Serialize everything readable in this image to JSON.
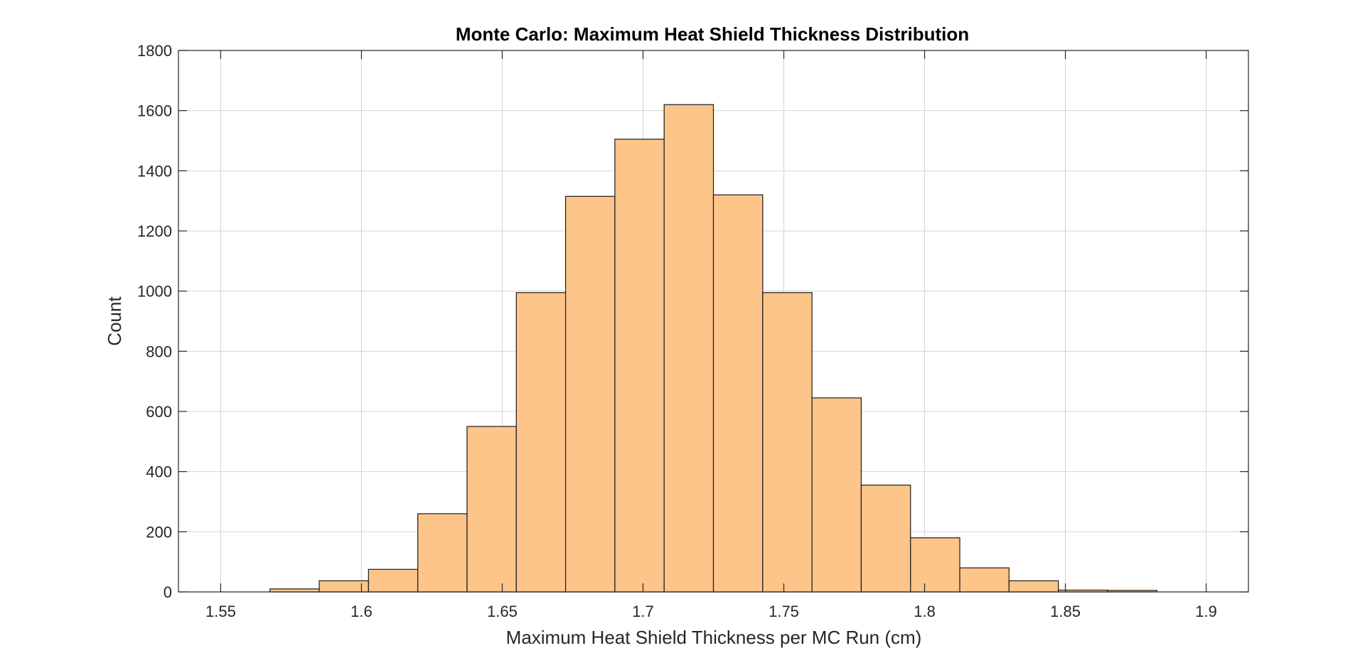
{
  "chart_data": {
    "type": "bar",
    "title": "Monte Carlo: Maximum Heat Shield Thickness Distribution",
    "xlabel": "Maximum Heat Shield Thickness per MC Run (cm)",
    "ylabel": "Count",
    "xlim": [
      1.535,
      1.915
    ],
    "ylim": [
      0,
      1800
    ],
    "xticks": [
      1.55,
      1.6,
      1.65,
      1.7,
      1.75,
      1.8,
      1.85,
      1.9
    ],
    "xtick_labels": [
      "1.55",
      "1.6",
      "1.65",
      "1.7",
      "1.75",
      "1.8",
      "1.85",
      "1.9"
    ],
    "yticks": [
      0,
      200,
      400,
      600,
      800,
      1000,
      1200,
      1400,
      1600,
      1800
    ],
    "ytick_labels": [
      "0",
      "200",
      "400",
      "600",
      "800",
      "1000",
      "1200",
      "1400",
      "1600",
      "1800"
    ],
    "grid": true,
    "bar_color": "#FDC58A",
    "bar_edge_color": "#1a1a1a",
    "bins": [
      {
        "x0": 1.5675,
        "x1": 1.585,
        "count": 10
      },
      {
        "x0": 1.585,
        "x1": 1.6025,
        "count": 37
      },
      {
        "x0": 1.6025,
        "x1": 1.62,
        "count": 75
      },
      {
        "x0": 1.62,
        "x1": 1.6375,
        "count": 260
      },
      {
        "x0": 1.6375,
        "x1": 1.655,
        "count": 550
      },
      {
        "x0": 1.655,
        "x1": 1.6725,
        "count": 995
      },
      {
        "x0": 1.6725,
        "x1": 1.69,
        "count": 1315
      },
      {
        "x0": 1.69,
        "x1": 1.7075,
        "count": 1505
      },
      {
        "x0": 1.7075,
        "x1": 1.725,
        "count": 1620
      },
      {
        "x0": 1.725,
        "x1": 1.7425,
        "count": 1320
      },
      {
        "x0": 1.7425,
        "x1": 1.76,
        "count": 995
      },
      {
        "x0": 1.76,
        "x1": 1.7775,
        "count": 645
      },
      {
        "x0": 1.7775,
        "x1": 1.795,
        "count": 355
      },
      {
        "x0": 1.795,
        "x1": 1.8125,
        "count": 180
      },
      {
        "x0": 1.8125,
        "x1": 1.83,
        "count": 80
      },
      {
        "x0": 1.83,
        "x1": 1.8475,
        "count": 37
      },
      {
        "x0": 1.8475,
        "x1": 1.865,
        "count": 6
      },
      {
        "x0": 1.865,
        "x1": 1.8825,
        "count": 5
      }
    ]
  }
}
